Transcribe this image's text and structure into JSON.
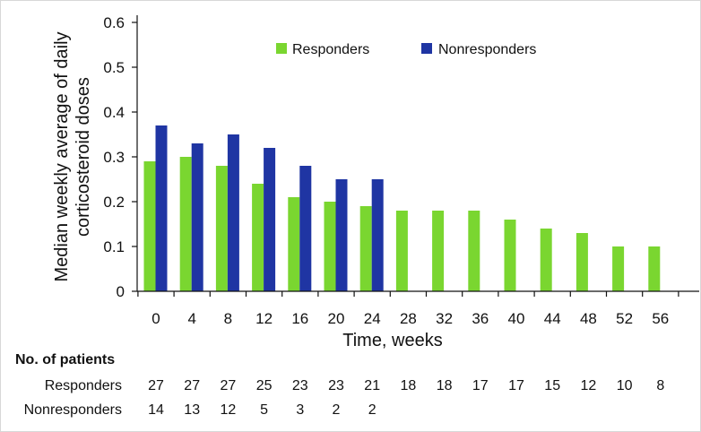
{
  "chart_data": {
    "type": "bar",
    "categories": [
      "0",
      "4",
      "8",
      "12",
      "16",
      "20",
      "24",
      "28",
      "32",
      "36",
      "40",
      "44",
      "48",
      "52",
      "56"
    ],
    "series": [
      {
        "name": "Responders",
        "color": "#7ad630",
        "values": [
          0.29,
          0.3,
          0.28,
          0.24,
          0.21,
          0.2,
          0.19,
          0.18,
          0.18,
          0.18,
          0.16,
          0.14,
          0.13,
          0.1,
          0.1
        ]
      },
      {
        "name": "Nonresponders",
        "color": "#1f35a3",
        "values": [
          0.37,
          0.33,
          0.35,
          0.32,
          0.28,
          0.25,
          0.25,
          null,
          null,
          null,
          null,
          null,
          null,
          null,
          null
        ]
      }
    ],
    "xlabel": "Time, weeks",
    "ylabel_lines": [
      "Median weekly average of daily",
      "corticosteroid doses"
    ],
    "ylim": [
      0,
      0.6
    ],
    "yticks": [
      "0",
      "0.1",
      "0.2",
      "0.3",
      "0.4",
      "0.5",
      "0.6"
    ],
    "grid": false,
    "legend_position": "top-right"
  },
  "patients_table": {
    "title": "No. of patients",
    "rows": [
      {
        "label": "Responders",
        "values": [
          "27",
          "27",
          "27",
          "25",
          "23",
          "23",
          "21",
          "18",
          "18",
          "17",
          "17",
          "15",
          "12",
          "10",
          "8"
        ]
      },
      {
        "label": "Nonresponders",
        "values": [
          "14",
          "13",
          "12",
          "5",
          "3",
          "2",
          "2"
        ]
      }
    ]
  }
}
